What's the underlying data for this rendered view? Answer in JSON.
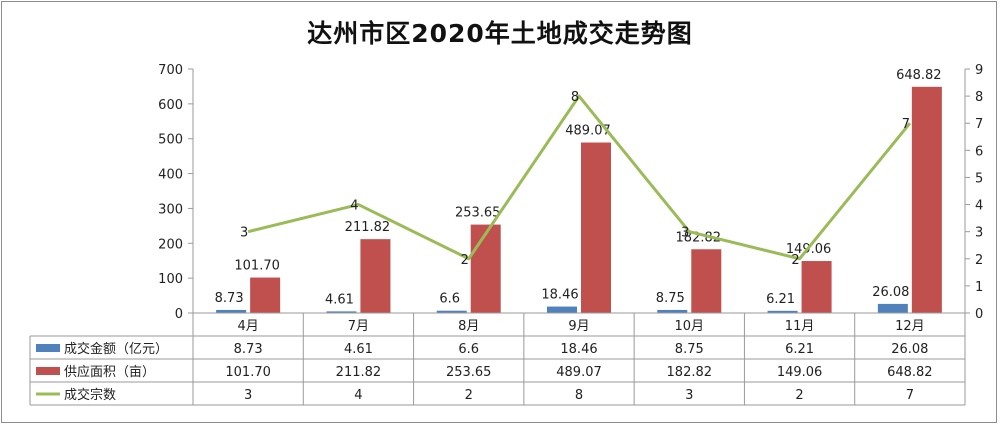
{
  "chart_data": {
    "type": "bar",
    "title": "达州市区2020年土地成交走势图",
    "categories": [
      "4月",
      "7月",
      "8月",
      "9月",
      "10月",
      "11月",
      "12月"
    ],
    "series": [
      {
        "name": "成交金额（亿元）",
        "type": "bar",
        "axis": "left",
        "color": "#4f81bd",
        "values": [
          8.73,
          4.61,
          6.6,
          18.46,
          8.75,
          6.21,
          26.08
        ],
        "labels": [
          "8.73",
          "4.61",
          "6.6",
          "18.46",
          "8.75",
          "6.21",
          "26.08"
        ]
      },
      {
        "name": "供应面积（亩）",
        "type": "bar",
        "axis": "left",
        "color": "#c0504d",
        "values": [
          101.7,
          211.82,
          253.65,
          489.07,
          182.82,
          149.06,
          648.82
        ],
        "labels": [
          "101.70",
          "211.82",
          "253.65",
          "489.07",
          "182.82",
          "149.06",
          "648.82"
        ]
      },
      {
        "name": "成交宗数",
        "type": "line",
        "axis": "right",
        "color": "#9bbb59",
        "values": [
          3,
          4,
          2,
          8,
          3,
          2,
          7
        ],
        "labels": [
          "3",
          "4",
          "2",
          "8",
          "3",
          "2",
          "7"
        ]
      }
    ],
    "y_left": {
      "min": 0,
      "max": 700,
      "ticks": [
        "0",
        "100",
        "200",
        "300",
        "400",
        "500",
        "600",
        "700"
      ]
    },
    "y_right": {
      "min": 0,
      "max": 9,
      "ticks": [
        "0",
        "1",
        "2",
        "3",
        "4",
        "5",
        "6",
        "7",
        "8",
        "9"
      ]
    },
    "grid": false,
    "legend": "data-table"
  }
}
